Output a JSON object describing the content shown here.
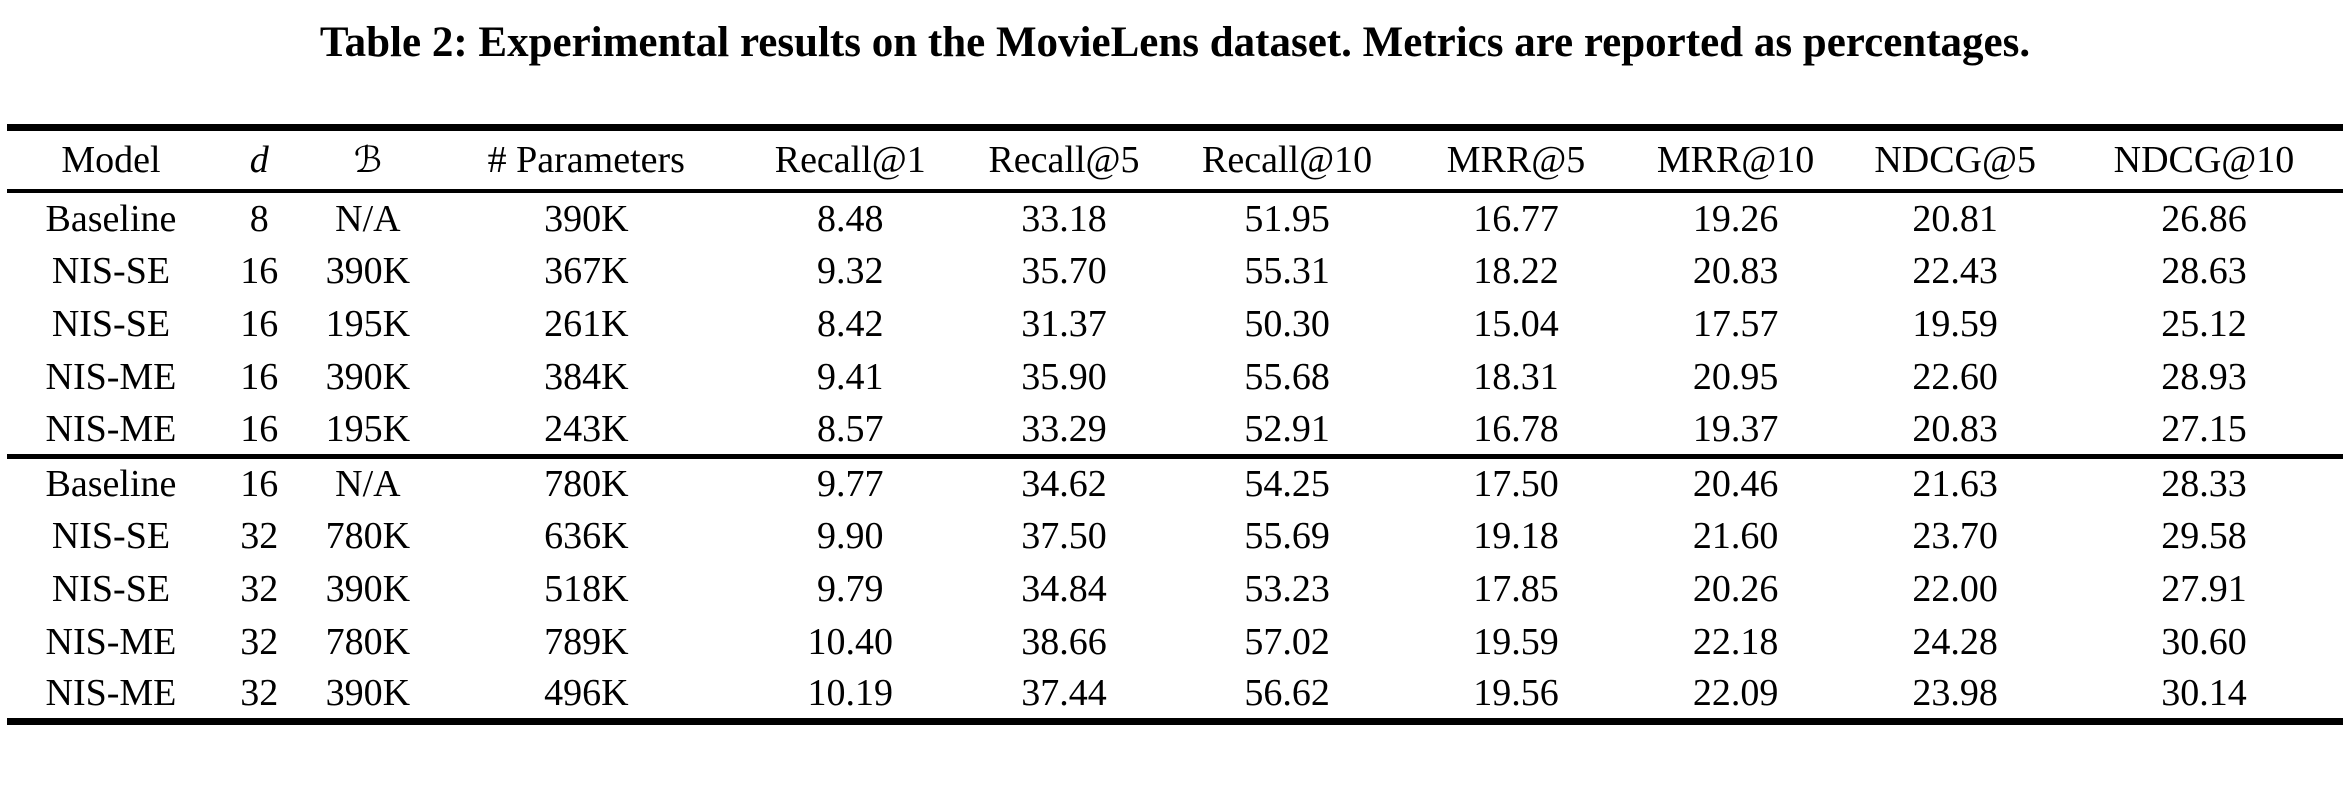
{
  "title": "Table 2: Experimental results on the MovieLens dataset. Metrics are reported as percentages.",
  "table": {
    "columns": [
      "Model",
      "d",
      "ℬ",
      "# Parameters",
      "Recall@1",
      "Recall@5",
      "Recall@10",
      "MRR@5",
      "MRR@10",
      "NDCG@5",
      "NDCG@10"
    ],
    "groups": [
      {
        "rows": [
          [
            "Baseline",
            "8",
            "N/A",
            "390K",
            "8.48",
            "33.18",
            "51.95",
            "16.77",
            "19.26",
            "20.81",
            "26.86"
          ],
          [
            "NIS-SE",
            "16",
            "390K",
            "367K",
            "9.32",
            "35.70",
            "55.31",
            "18.22",
            "20.83",
            "22.43",
            "28.63"
          ],
          [
            "NIS-SE",
            "16",
            "195K",
            "261K",
            "8.42",
            "31.37",
            "50.30",
            "15.04",
            "17.57",
            "19.59",
            "25.12"
          ],
          [
            "NIS-ME",
            "16",
            "390K",
            "384K",
            "9.41",
            "35.90",
            "55.68",
            "18.31",
            "20.95",
            "22.60",
            "28.93"
          ],
          [
            "NIS-ME",
            "16",
            "195K",
            "243K",
            "8.57",
            "33.29",
            "52.91",
            "16.78",
            "19.37",
            "20.83",
            "27.15"
          ]
        ]
      },
      {
        "rows": [
          [
            "Baseline",
            "16",
            "N/A",
            "780K",
            "9.77",
            "34.62",
            "54.25",
            "17.50",
            "20.46",
            "21.63",
            "28.33"
          ],
          [
            "NIS-SE",
            "32",
            "780K",
            "636K",
            "9.90",
            "37.50",
            "55.69",
            "19.18",
            "21.60",
            "23.70",
            "29.58"
          ],
          [
            "NIS-SE",
            "32",
            "390K",
            "518K",
            "9.79",
            "34.84",
            "53.23",
            "17.85",
            "20.26",
            "22.00",
            "27.91"
          ],
          [
            "NIS-ME",
            "32",
            "780K",
            "789K",
            "10.40",
            "38.66",
            "57.02",
            "19.59",
            "22.18",
            "24.28",
            "30.60"
          ],
          [
            "NIS-ME",
            "32",
            "390K",
            "496K",
            "10.19",
            "37.44",
            "56.62",
            "19.56",
            "22.09",
            "23.98",
            "30.14"
          ]
        ]
      }
    ]
  }
}
